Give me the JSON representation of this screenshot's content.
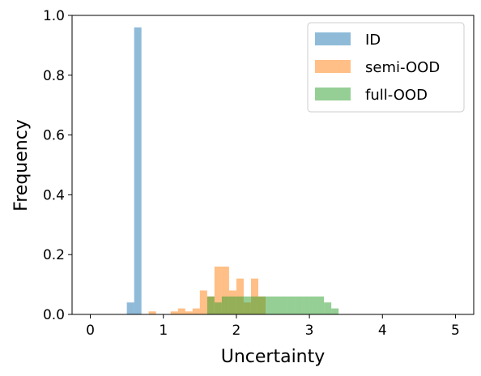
{
  "chart_data": {
    "type": "histogram",
    "xlabel": "Uncertainty",
    "ylabel": "Frequency",
    "xlim": [
      -0.25,
      5.25
    ],
    "ylim": [
      0,
      1.0
    ],
    "xticks": [
      0,
      1,
      2,
      3,
      4,
      5
    ],
    "yticks": [
      0.0,
      0.2,
      0.4,
      0.6,
      0.8,
      1.0
    ],
    "ytick_labels": [
      "0.0",
      "0.2",
      "0.4",
      "0.6",
      "0.8",
      "1.0"
    ],
    "bin_width": 0.1,
    "legend_position": "top-right",
    "series": [
      {
        "name": "ID",
        "color": "#1f77b4",
        "alpha": 0.5,
        "bins": [
          {
            "x0": 0.5,
            "x1": 0.6,
            "freq": 0.04
          },
          {
            "x0": 0.6,
            "x1": 0.7,
            "freq": 0.96
          }
        ]
      },
      {
        "name": "semi-OOD",
        "color": "#ff7f0e",
        "alpha": 0.5,
        "bins": [
          {
            "x0": 0.8,
            "x1": 0.9,
            "freq": 0.01
          },
          {
            "x0": 1.1,
            "x1": 1.2,
            "freq": 0.01
          },
          {
            "x0": 1.2,
            "x1": 1.3,
            "freq": 0.02
          },
          {
            "x0": 1.3,
            "x1": 1.4,
            "freq": 0.01
          },
          {
            "x0": 1.4,
            "x1": 1.5,
            "freq": 0.02
          },
          {
            "x0": 1.5,
            "x1": 1.6,
            "freq": 0.08
          },
          {
            "x0": 1.6,
            "x1": 1.7,
            "freq": 0.06
          },
          {
            "x0": 1.7,
            "x1": 1.8,
            "freq": 0.16
          },
          {
            "x0": 1.8,
            "x1": 1.9,
            "freq": 0.16
          },
          {
            "x0": 1.9,
            "x1": 2.0,
            "freq": 0.08
          },
          {
            "x0": 2.0,
            "x1": 2.1,
            "freq": 0.12
          },
          {
            "x0": 2.1,
            "x1": 2.2,
            "freq": 0.04
          },
          {
            "x0": 2.2,
            "x1": 2.3,
            "freq": 0.12
          },
          {
            "x0": 2.3,
            "x1": 2.4,
            "freq": 0.06
          }
        ]
      },
      {
        "name": "full-OOD",
        "color": "#2ca02c",
        "alpha": 0.5,
        "bins": [
          {
            "x0": 1.6,
            "x1": 1.7,
            "freq": 0.06
          },
          {
            "x0": 1.7,
            "x1": 1.8,
            "freq": 0.04
          },
          {
            "x0": 1.8,
            "x1": 1.9,
            "freq": 0.06
          },
          {
            "x0": 1.9,
            "x1": 2.0,
            "freq": 0.06
          },
          {
            "x0": 2.0,
            "x1": 2.1,
            "freq": 0.06
          },
          {
            "x0": 2.1,
            "x1": 2.2,
            "freq": 0.06
          },
          {
            "x0": 2.2,
            "x1": 2.3,
            "freq": 0.06
          },
          {
            "x0": 2.3,
            "x1": 2.4,
            "freq": 0.06
          },
          {
            "x0": 2.4,
            "x1": 2.5,
            "freq": 0.06
          },
          {
            "x0": 2.5,
            "x1": 2.6,
            "freq": 0.06
          },
          {
            "x0": 2.6,
            "x1": 2.7,
            "freq": 0.06
          },
          {
            "x0": 2.7,
            "x1": 2.8,
            "freq": 0.06
          },
          {
            "x0": 2.8,
            "x1": 2.9,
            "freq": 0.06
          },
          {
            "x0": 2.9,
            "x1": 3.0,
            "freq": 0.06
          },
          {
            "x0": 3.0,
            "x1": 3.1,
            "freq": 0.06
          },
          {
            "x0": 3.1,
            "x1": 3.2,
            "freq": 0.06
          },
          {
            "x0": 3.2,
            "x1": 3.3,
            "freq": 0.04
          },
          {
            "x0": 3.3,
            "x1": 3.4,
            "freq": 0.02
          }
        ]
      }
    ]
  }
}
